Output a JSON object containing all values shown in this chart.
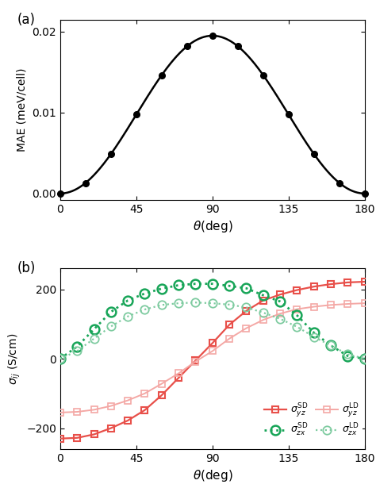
{
  "panel_a": {
    "theta_data": [
      0,
      15,
      30,
      45,
      60,
      75,
      90,
      105,
      120,
      135,
      150,
      165,
      180
    ],
    "ylabel": "MAE (meV/cell)",
    "xlabel": "$\\theta$(deg)",
    "xlim": [
      0,
      180
    ],
    "ylim": [
      -0.0008,
      0.0215
    ],
    "yticks": [
      0.0,
      0.01,
      0.02
    ],
    "xticks": [
      0,
      45,
      90,
      135,
      180
    ],
    "fit_amplitude": 0.0195
  },
  "panel_b": {
    "theta": [
      0,
      10,
      20,
      30,
      40,
      50,
      60,
      70,
      80,
      90,
      100,
      110,
      120,
      130,
      140,
      150,
      160,
      170,
      180
    ],
    "sigma_SD_yz": [
      -230,
      -228,
      -218,
      -200,
      -178,
      -148,
      -105,
      -55,
      -5,
      45,
      98,
      138,
      168,
      185,
      198,
      208,
      215,
      220,
      222
    ],
    "sigma_LD_yz": [
      -155,
      -153,
      -147,
      -136,
      -120,
      -100,
      -72,
      -42,
      -8,
      22,
      58,
      88,
      112,
      130,
      143,
      150,
      155,
      158,
      160
    ],
    "sigma_SD_zx": [
      0,
      35,
      85,
      135,
      168,
      188,
      202,
      212,
      216,
      216,
      210,
      203,
      183,
      165,
      125,
      75,
      38,
      8,
      0
    ],
    "sigma_LD_zx": [
      0,
      22,
      58,
      93,
      122,
      142,
      155,
      160,
      162,
      160,
      156,
      148,
      133,
      115,
      92,
      63,
      38,
      13,
      0
    ],
    "ylabel": "$\\sigma_{ij}$ (S/cm)",
    "xlabel": "$\\theta$(deg)",
    "xlim": [
      0,
      180
    ],
    "ylim": [
      -260,
      260
    ],
    "yticks": [
      -200,
      0,
      200
    ],
    "xticks": [
      0,
      45,
      90,
      135,
      180
    ],
    "color_SD_yz": "#e8504a",
    "color_LD_yz": "#f4a8a5",
    "color_SD_zx": "#18a558",
    "color_LD_zx": "#7ecba0"
  }
}
